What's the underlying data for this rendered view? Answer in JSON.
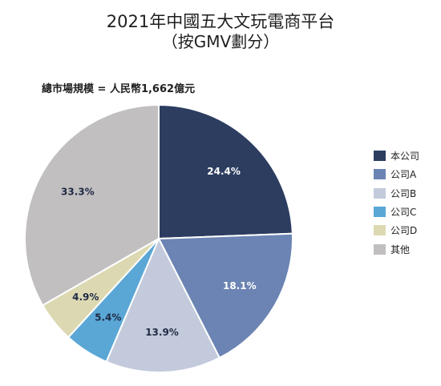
{
  "title": {
    "line1": "2021年中國五大文玩電商平台",
    "line2": "（按GMV劃分）"
  },
  "market_size_text": "總市場規模 = 人民幣1,662億元",
  "chart_data": {
    "type": "pie",
    "title": "2021年中國五大文玩電商平台（按GMV劃分）",
    "subtitle": "總市場規模 = 人民幣1,662億元",
    "start_angle_deg": 0,
    "direction": "clockwise",
    "legend_position": "right",
    "slices": [
      {
        "label": "本公司",
        "value": 24.4,
        "value_label": "24.4%",
        "color": "#2c3d60",
        "label_color": "#ffffff"
      },
      {
        "label": "公司A",
        "value": 18.1,
        "value_label": "18.1%",
        "color": "#6b84b3",
        "label_color": "#ffffff"
      },
      {
        "label": "公司B",
        "value": 13.9,
        "value_label": "13.9%",
        "color": "#c3cadc",
        "label_color": "#1f2a44"
      },
      {
        "label": "公司C",
        "value": 5.4,
        "value_label": "5.4%",
        "color": "#5aa7d6",
        "label_color": "#1f2a44"
      },
      {
        "label": "公司D",
        "value": 4.9,
        "value_label": "4.9%",
        "color": "#dcd9b2",
        "label_color": "#1f2a44"
      },
      {
        "label": "其他",
        "value": 33.3,
        "value_label": "33.3%",
        "color": "#c1bfbf",
        "label_color": "#1f2a44"
      }
    ]
  }
}
